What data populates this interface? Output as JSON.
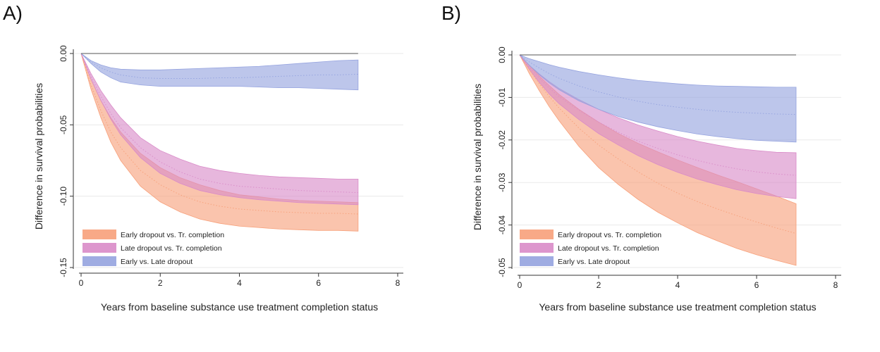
{
  "chart_data": [
    {
      "type": "area",
      "panel_label": "A)",
      "xlabel": "Years from baseline substance use treatment completion status",
      "ylabel": "Difference in survival probabilities",
      "xlim": [
        0,
        8
      ],
      "ylim": [
        -0.15,
        0.0
      ],
      "xticks": [
        0,
        2,
        4,
        6,
        8
      ],
      "yticks": [
        0.0,
        -0.05,
        -0.1,
        -0.15
      ],
      "ytick_labels": [
        "0.00",
        "-0.05",
        "-0.10",
        "-0.15"
      ],
      "grid": true,
      "reference_line": 0,
      "legend_position": "bottom-left",
      "x": [
        0,
        0.25,
        0.5,
        0.75,
        1,
        1.5,
        2,
        2.5,
        3,
        3.5,
        4,
        4.5,
        5,
        5.5,
        6,
        6.5,
        7
      ],
      "series": [
        {
          "name": "Early dropout vs. Tr. completion",
          "color": "#f7a07a",
          "lower": [
            0,
            -0.025,
            -0.045,
            -0.062,
            -0.075,
            -0.093,
            -0.104,
            -0.111,
            -0.116,
            -0.119,
            -0.121,
            -0.122,
            -0.123,
            -0.1235,
            -0.124,
            -0.124,
            -0.1245
          ],
          "mid": [
            0,
            -0.022,
            -0.04,
            -0.055,
            -0.066,
            -0.082,
            -0.092,
            -0.099,
            -0.104,
            -0.107,
            -0.109,
            -0.11,
            -0.111,
            -0.1115,
            -0.112,
            -0.112,
            -0.1125
          ],
          "upper": [
            0,
            -0.018,
            -0.033,
            -0.045,
            -0.055,
            -0.07,
            -0.08,
            -0.087,
            -0.092,
            -0.096,
            -0.099,
            -0.1005,
            -0.102,
            -0.103,
            -0.1035,
            -0.104,
            -0.1045
          ]
        },
        {
          "name": "Late dropout vs. Tr. completion",
          "color": "#d98bc8",
          "lower": [
            0,
            -0.018,
            -0.033,
            -0.046,
            -0.057,
            -0.073,
            -0.084,
            -0.091,
            -0.096,
            -0.099,
            -0.101,
            -0.1025,
            -0.1035,
            -0.1045,
            -0.105,
            -0.1055,
            -0.106
          ],
          "mid": [
            0,
            -0.016,
            -0.03,
            -0.042,
            -0.052,
            -0.066,
            -0.076,
            -0.083,
            -0.088,
            -0.091,
            -0.093,
            -0.094,
            -0.095,
            -0.096,
            -0.0965,
            -0.097,
            -0.0975
          ],
          "upper": [
            0,
            -0.014,
            -0.026,
            -0.036,
            -0.045,
            -0.059,
            -0.068,
            -0.074,
            -0.079,
            -0.082,
            -0.084,
            -0.0855,
            -0.0865,
            -0.087,
            -0.0875,
            -0.088,
            -0.088
          ]
        },
        {
          "name": "Early vs. Late dropout",
          "color": "#95a3df",
          "lower": [
            0,
            -0.007,
            -0.013,
            -0.017,
            -0.02,
            -0.022,
            -0.023,
            -0.023,
            -0.023,
            -0.023,
            -0.023,
            -0.0235,
            -0.024,
            -0.024,
            -0.0245,
            -0.025,
            -0.0255
          ],
          "mid": [
            0,
            -0.006,
            -0.01,
            -0.013,
            -0.015,
            -0.017,
            -0.0175,
            -0.0175,
            -0.0175,
            -0.017,
            -0.017,
            -0.0165,
            -0.016,
            -0.0155,
            -0.015,
            -0.015,
            -0.0145
          ],
          "upper": [
            0,
            -0.005,
            -0.008,
            -0.01,
            -0.011,
            -0.0115,
            -0.0115,
            -0.011,
            -0.0105,
            -0.01,
            -0.0095,
            -0.009,
            -0.008,
            -0.007,
            -0.006,
            -0.005,
            -0.0045
          ]
        }
      ]
    },
    {
      "type": "area",
      "panel_label": "B)",
      "xlabel": "Years from baseline substance use treatment completion status",
      "ylabel": "Difference in survival probabilities",
      "xlim": [
        0,
        8
      ],
      "ylim": [
        -0.05,
        0.0
      ],
      "xticks": [
        0,
        2,
        4,
        6,
        8
      ],
      "yticks": [
        0.0,
        -0.01,
        -0.02,
        -0.03,
        -0.04,
        -0.05
      ],
      "ytick_labels": [
        "0.00",
        "-0.01",
        "-0.02",
        "-0.03",
        "-0.04",
        "-0.05"
      ],
      "grid": true,
      "reference_line": 0,
      "legend_position": "bottom-left",
      "x": [
        0,
        0.25,
        0.5,
        0.75,
        1,
        1.5,
        2,
        2.5,
        3,
        3.5,
        4,
        4.5,
        5,
        5.5,
        6,
        6.5,
        7
      ],
      "series": [
        {
          "name": "Early dropout vs. Tr. completion",
          "color": "#f7a07a",
          "lower": [
            0,
            -0.0045,
            -0.0085,
            -0.0122,
            -0.0155,
            -0.0215,
            -0.0265,
            -0.0305,
            -0.034,
            -0.037,
            -0.0395,
            -0.0418,
            -0.0437,
            -0.0455,
            -0.047,
            -0.0483,
            -0.0495
          ],
          "mid": [
            0,
            -0.0035,
            -0.0068,
            -0.0098,
            -0.0125,
            -0.0172,
            -0.0212,
            -0.0245,
            -0.0275,
            -0.0302,
            -0.0325,
            -0.0345,
            -0.0362,
            -0.0378,
            -0.0393,
            -0.0407,
            -0.042
          ],
          "upper": [
            0,
            -0.0025,
            -0.005,
            -0.0072,
            -0.0093,
            -0.0128,
            -0.0158,
            -0.0185,
            -0.0208,
            -0.0228,
            -0.0247,
            -0.0265,
            -0.0282,
            -0.0298,
            -0.0315,
            -0.0332,
            -0.035
          ]
        },
        {
          "name": "Late dropout vs. Tr. completion",
          "color": "#d98bc8",
          "lower": [
            0,
            -0.0035,
            -0.0065,
            -0.0092,
            -0.0115,
            -0.0152,
            -0.0185,
            -0.0212,
            -0.0237,
            -0.0258,
            -0.0276,
            -0.0292,
            -0.0305,
            -0.0317,
            -0.0326,
            -0.0333,
            -0.0338
          ],
          "mid": [
            0,
            -0.003,
            -0.0055,
            -0.0078,
            -0.0098,
            -0.013,
            -0.0158,
            -0.0182,
            -0.0203,
            -0.022,
            -0.0235,
            -0.0248,
            -0.0259,
            -0.0268,
            -0.0275,
            -0.028,
            -0.0283
          ],
          "upper": [
            0,
            -0.0025,
            -0.0045,
            -0.0063,
            -0.0079,
            -0.0105,
            -0.0128,
            -0.0148,
            -0.0165,
            -0.0179,
            -0.0192,
            -0.0203,
            -0.0212,
            -0.022,
            -0.0225,
            -0.0229,
            -0.023
          ]
        },
        {
          "name": "Early vs. Late dropout",
          "color": "#95a3df",
          "lower": [
            0,
            -0.0025,
            -0.0047,
            -0.0066,
            -0.0082,
            -0.0108,
            -0.0128,
            -0.0145,
            -0.0158,
            -0.0169,
            -0.0178,
            -0.0186,
            -0.0192,
            -0.0197,
            -0.0201,
            -0.0203,
            -0.0205
          ],
          "mid": [
            0,
            -0.0017,
            -0.0031,
            -0.0044,
            -0.0055,
            -0.0073,
            -0.0087,
            -0.0099,
            -0.0109,
            -0.0117,
            -0.0123,
            -0.0128,
            -0.0132,
            -0.0135,
            -0.0137,
            -0.0139,
            -0.014
          ],
          "upper": [
            0,
            -0.0009,
            -0.0016,
            -0.0023,
            -0.0029,
            -0.0039,
            -0.0047,
            -0.0054,
            -0.006,
            -0.0064,
            -0.0068,
            -0.0071,
            -0.0073,
            -0.0074,
            -0.0075,
            -0.0076,
            -0.0076
          ]
        }
      ]
    }
  ]
}
